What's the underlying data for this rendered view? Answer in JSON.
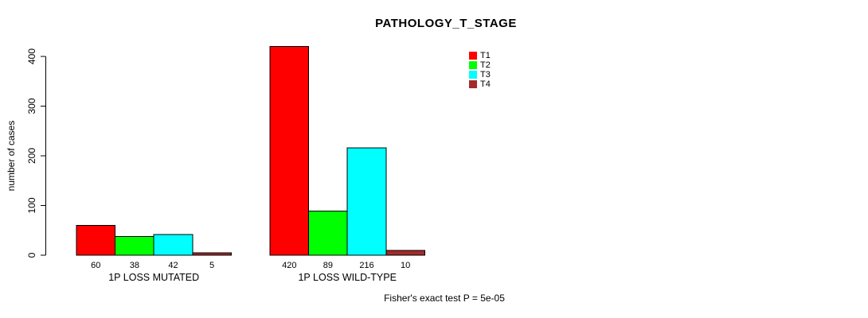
{
  "page": {
    "background_color": "#ffffff",
    "text_color": "#000000"
  },
  "chart_data": {
    "type": "bar",
    "title": "PATHOLOGY_T_STAGE",
    "ylabel": "number of cases",
    "xlabel": "",
    "ylim": [
      0,
      400
    ],
    "yticks": [
      0,
      100,
      200,
      300,
      400
    ],
    "grid": false,
    "legend_position": "top-right",
    "categories": [
      "1P LOSS MUTATED",
      "1P LOSS WILD-TYPE"
    ],
    "series": [
      {
        "name": "T1",
        "color": "#ff0000",
        "values": [
          60,
          420
        ]
      },
      {
        "name": "T2",
        "color": "#00ff00",
        "values": [
          38,
          89
        ]
      },
      {
        "name": "T3",
        "color": "#00ffff",
        "values": [
          42,
          216
        ]
      },
      {
        "name": "T4",
        "color": "#a52a2a",
        "values": [
          5,
          10
        ]
      }
    ],
    "bar_value_labels": [
      [
        "60",
        "38",
        "42",
        "5"
      ],
      [
        "420",
        "89",
        "216",
        "10"
      ]
    ],
    "bar_border_color": "#000000",
    "axis_color": "#000000",
    "annotation": "Fisher's exact test P = 5e-05"
  }
}
